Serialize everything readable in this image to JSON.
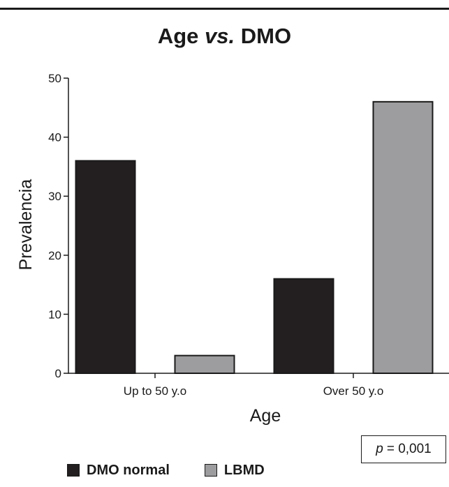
{
  "chart_data": {
    "type": "bar",
    "title_main": "Age",
    "title_vs": "vs.",
    "title_end": "DMO",
    "xlabel": "Age",
    "ylabel": "Prevalencia",
    "categories": [
      "Up to 50 y.o",
      "Over 50 y.o"
    ],
    "series": [
      {
        "name": "DMO normal",
        "values": [
          36,
          16
        ],
        "color": "#231f20"
      },
      {
        "name": "LBMD",
        "values": [
          3,
          46
        ],
        "color": "#9d9d9f"
      }
    ],
    "ylim": [
      0,
      50
    ],
    "yticks": [
      0,
      10,
      20,
      30,
      40,
      50
    ],
    "grid": false,
    "legend_position": "bottom-left",
    "annotation": {
      "p_symbol": "p",
      "p_text": "= 0,001"
    }
  }
}
